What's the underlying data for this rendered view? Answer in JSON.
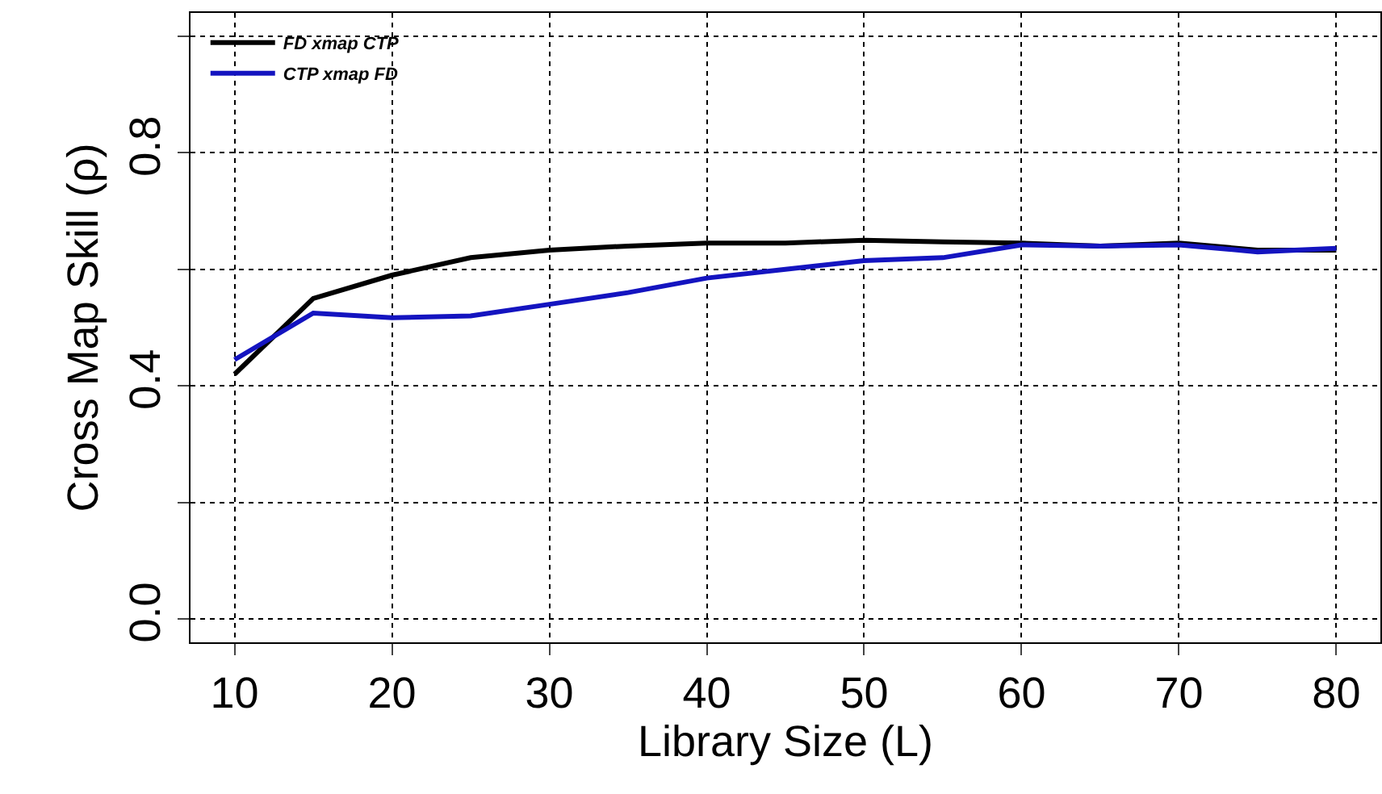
{
  "chart_data": {
    "type": "line",
    "xlabel": "Library Size (L)",
    "ylabel": "Cross Map Skill (ρ)",
    "x": [
      10,
      15,
      20,
      25,
      30,
      35,
      40,
      45,
      50,
      55,
      60,
      65,
      70,
      75,
      80
    ],
    "series": [
      {
        "name": "FD xmap CTP",
        "color": "#000000",
        "values": [
          0.42,
          0.55,
          0.59,
          0.62,
          0.633,
          0.64,
          0.645,
          0.645,
          0.65,
          0.647,
          0.645,
          0.64,
          0.645,
          0.633,
          0.633
        ]
      },
      {
        "name": "CTP xmap FD",
        "color": "#1414c0",
        "values": [
          0.445,
          0.525,
          0.517,
          0.52,
          0.54,
          0.56,
          0.585,
          0.6,
          0.615,
          0.62,
          0.642,
          0.64,
          0.642,
          0.63,
          0.636
        ]
      }
    ],
    "xlim": [
      7.2,
      82.8
    ],
    "xticks": [
      10,
      20,
      30,
      40,
      50,
      60,
      70,
      80
    ],
    "ylim": [
      -0.04,
      1.04
    ],
    "yticks": [
      {
        "value": 0,
        "label": "0.0"
      },
      {
        "value": 0.2,
        "label": null
      },
      0.4,
      {
        "value": 0.6,
        "label": null
      },
      0.8,
      {
        "value": 1,
        "label": null
      }
    ],
    "grid": true,
    "legend": "top left",
    "line_style": "solid",
    "marker": "none"
  }
}
